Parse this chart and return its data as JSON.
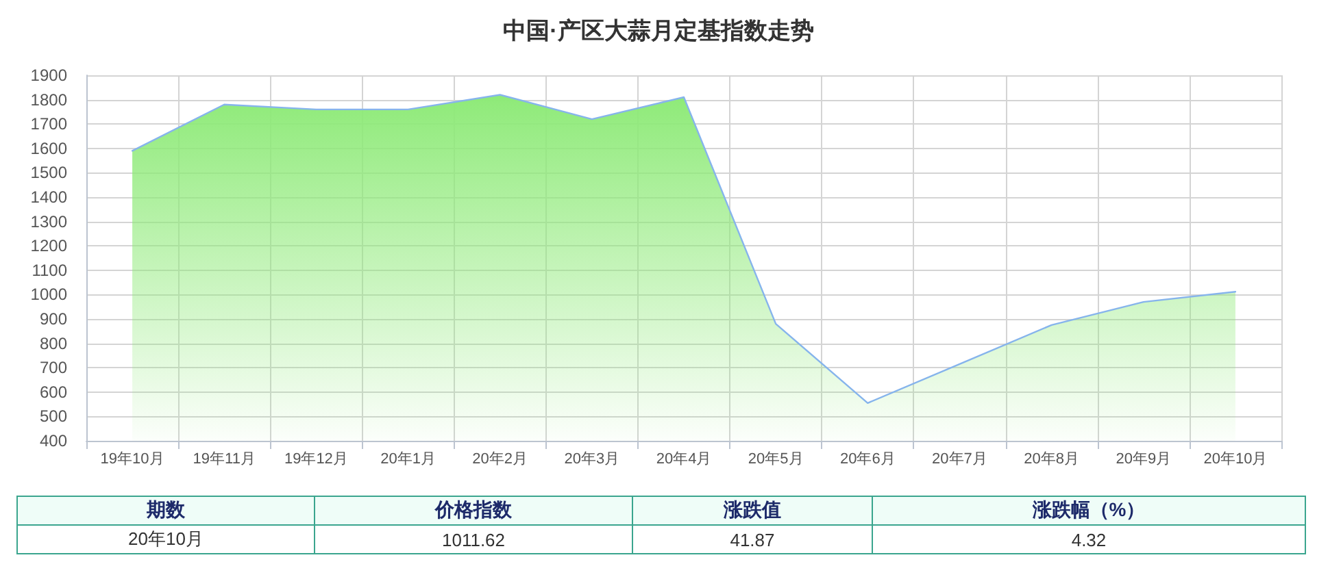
{
  "chart_data": {
    "type": "area",
    "title": "中国·产区大蒜月定基指数走势",
    "categories": [
      "19年10月",
      "19年11月",
      "19年12月",
      "20年1月",
      "20年2月",
      "20年3月",
      "20年4月",
      "20年5月",
      "20年6月",
      "20年7月",
      "20年8月",
      "20年9月",
      "20年10月"
    ],
    "series": [
      {
        "color": "#8eea78",
        "values": [
          1590,
          1780,
          1760,
          1760,
          1820,
          1720,
          1810,
          880,
          555,
          715,
          875,
          970,
          1011.62
        ]
      }
    ],
    "ylim": [
      400,
      1900
    ],
    "yticks": [
      400,
      500,
      600,
      700,
      800,
      900,
      1000,
      1100,
      1200,
      1300,
      1400,
      1500,
      1600,
      1700,
      1800,
      1900
    ],
    "grid": true,
    "marker": "none",
    "line_style": "solid",
    "annotations": [
      "期数",
      "价格指数",
      "涨跌值",
      "涨跌幅（%）",
      "20年10月",
      "1011.62",
      "41.87",
      "4.32"
    ]
  }
}
